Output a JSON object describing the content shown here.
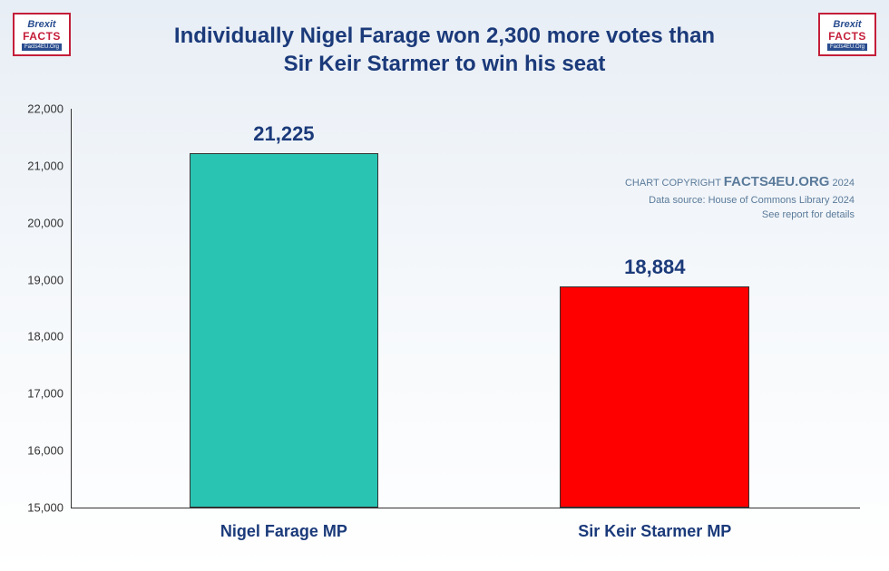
{
  "logo": {
    "line1": "Brexit",
    "line2": "FACTS",
    "line3": "Facts4EU.Org"
  },
  "title": {
    "line1": "Individually Nigel Farage won 2,300 more votes than",
    "line2": "Sir Keir Starmer to win his seat"
  },
  "chart": {
    "type": "bar",
    "ylim": [
      15000,
      22000
    ],
    "ytick_step": 1000,
    "yticks": [
      15000,
      16000,
      17000,
      18000,
      19000,
      20000,
      21000,
      22000
    ],
    "ytick_labels": [
      "15,000",
      "16,000",
      "17,000",
      "18,000",
      "19,000",
      "20,000",
      "21,000",
      "22,000"
    ],
    "bars": [
      {
        "label": "Nigel Farage MP",
        "value": 21225,
        "value_label": "21,225",
        "color": "#2ac4b3",
        "x_center_pct": 27,
        "width_pct": 24
      },
      {
        "label": "Sir Keir Starmer MP",
        "value": 18884,
        "value_label": "18,884",
        "color": "#ff0000",
        "x_center_pct": 74,
        "width_pct": 24
      }
    ],
    "title_color": "#1b3a7a",
    "label_fontsize": 18,
    "value_fontsize": 22,
    "background": "linear-gradient(to bottom, #e8eef5 0%, #f5f8fb 50%, #ffffff 100%)"
  },
  "attribution": {
    "copyright_prefix": "CHART COPYRIGHT ",
    "copyright_main": "FACTS4EU.ORG",
    "copyright_year": " 2024",
    "source": "Data source: House of Commons Library 2024",
    "note": "See report for details"
  }
}
